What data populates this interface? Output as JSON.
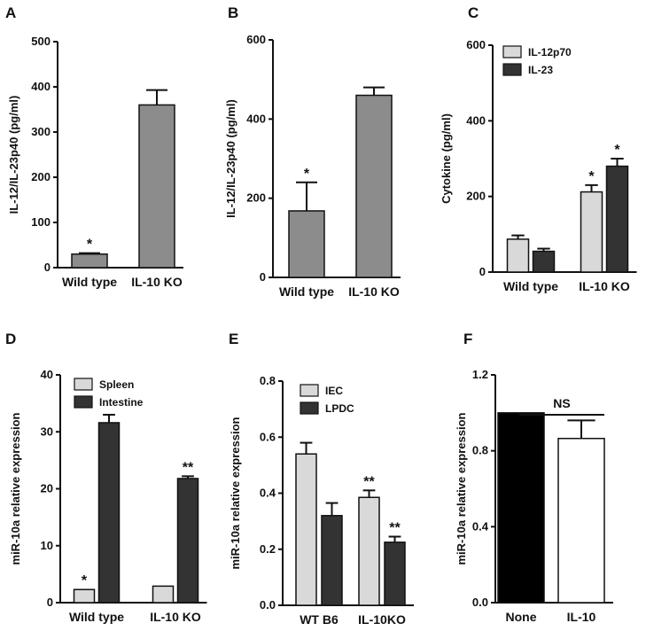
{
  "figure": {
    "panels": [
      "A",
      "B",
      "C",
      "D",
      "E",
      "F"
    ]
  },
  "chart_data": [
    {
      "panel": "A",
      "type": "bar",
      "ylabel": "IL-12/IL-23p40 (pg/ml)",
      "ylim": [
        0,
        500
      ],
      "yticks": [
        "0",
        "100",
        "200",
        "300",
        "400",
        "500"
      ],
      "categories": [
        "Wild type",
        "IL-10 KO"
      ],
      "series": [
        {
          "name": "",
          "color": "#8c8c8c",
          "values": [
            30,
            360
          ],
          "errors": [
            2,
            33
          ],
          "sig": [
            "*",
            ""
          ]
        }
      ]
    },
    {
      "panel": "B",
      "type": "bar",
      "ylabel": "IL-12/IL-23p40 (pg/ml)",
      "ylim": [
        0,
        600
      ],
      "yticks": [
        "0",
        "200",
        "400",
        "600"
      ],
      "categories": [
        "Wild type",
        "IL-10 KO"
      ],
      "series": [
        {
          "name": "",
          "color": "#8c8c8c",
          "values": [
            168,
            460
          ],
          "errors": [
            72,
            20
          ],
          "sig": [
            "*",
            ""
          ]
        }
      ]
    },
    {
      "panel": "C",
      "type": "bar",
      "ylabel": "Cytokine (pg/ml)",
      "ylim": [
        0,
        600
      ],
      "yticks": [
        "0",
        "200",
        "400",
        "600"
      ],
      "categories": [
        "Wild type",
        "IL-10 KO"
      ],
      "series": [
        {
          "name": "IL-12p70",
          "color": "#d9d9d9",
          "values": [
            87,
            212
          ],
          "errors": [
            10,
            18
          ],
          "sig": [
            "",
            "*"
          ]
        },
        {
          "name": "IL-23",
          "color": "#333333",
          "values": [
            55,
            280
          ],
          "errors": [
            7,
            20
          ],
          "sig": [
            "",
            "*"
          ]
        }
      ],
      "legend": "top-left"
    },
    {
      "panel": "D",
      "type": "bar",
      "ylabel": "miR-10a relative expression",
      "ylim": [
        0,
        40
      ],
      "yticks": [
        "0",
        "10",
        "20",
        "30",
        "40"
      ],
      "categories": [
        "Wild type",
        "IL-10 KO"
      ],
      "series": [
        {
          "name": "Spleen",
          "color": "#d9d9d9",
          "values": [
            2.3,
            2.9
          ],
          "errors": [
            0,
            0
          ],
          "sig": [
            "*",
            ""
          ]
        },
        {
          "name": "Intestine",
          "color": "#333333",
          "values": [
            31.6,
            21.8
          ],
          "errors": [
            1.4,
            0.4
          ],
          "sig": [
            "",
            "**"
          ]
        }
      ],
      "legend": "top-left"
    },
    {
      "panel": "E",
      "type": "bar",
      "ylabel": "miR-10a relative expression",
      "ylim": [
        0,
        0.8
      ],
      "yticks": [
        "0.0",
        "0.2",
        "0.4",
        "0.6",
        "0.8"
      ],
      "categories": [
        "WT B6",
        "IL-10KO"
      ],
      "series": [
        {
          "name": "IEC",
          "color": "#d9d9d9",
          "values": [
            0.54,
            0.385
          ],
          "errors": [
            0.04,
            0.025
          ],
          "sig": [
            "",
            "**"
          ]
        },
        {
          "name": "LPDC",
          "color": "#333333",
          "values": [
            0.32,
            0.225
          ],
          "errors": [
            0.045,
            0.02
          ],
          "sig": [
            "",
            "**"
          ]
        }
      ],
      "legend": "top-left"
    },
    {
      "panel": "F",
      "type": "bar",
      "ylabel": "miR-10a relative expression",
      "ylim": [
        0,
        1.2
      ],
      "yticks": [
        "0.0",
        "0.4",
        "0.8",
        "1.2"
      ],
      "categories": [
        "None",
        "IL-10"
      ],
      "series": [
        {
          "name": "",
          "colors": [
            "#000000",
            "#ffffff"
          ],
          "values": [
            1.0,
            0.865
          ],
          "errors": [
            0,
            0.095
          ],
          "sig": [
            "",
            ""
          ]
        }
      ],
      "annotation": "NS"
    }
  ]
}
